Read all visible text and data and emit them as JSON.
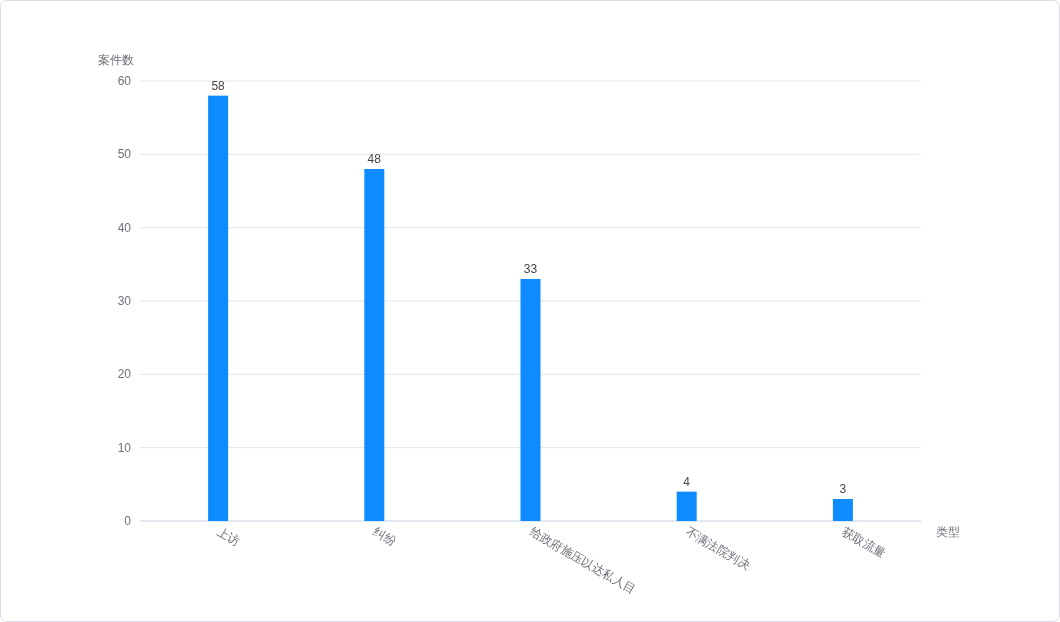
{
  "chart_data": {
    "type": "bar",
    "ylabel": "案件数",
    "xlabel": "类型",
    "categories": [
      "上访",
      "纠纷",
      "给政府施压以达私人目",
      "不满法院判决",
      "获取流量"
    ],
    "values": [
      58,
      48,
      33,
      4,
      3
    ],
    "color": "#0e8cff",
    "ylim": [
      0,
      60
    ],
    "yticks": [
      0,
      10,
      20,
      30,
      40,
      50,
      60
    ],
    "grid": "y",
    "data_labels": true
  }
}
